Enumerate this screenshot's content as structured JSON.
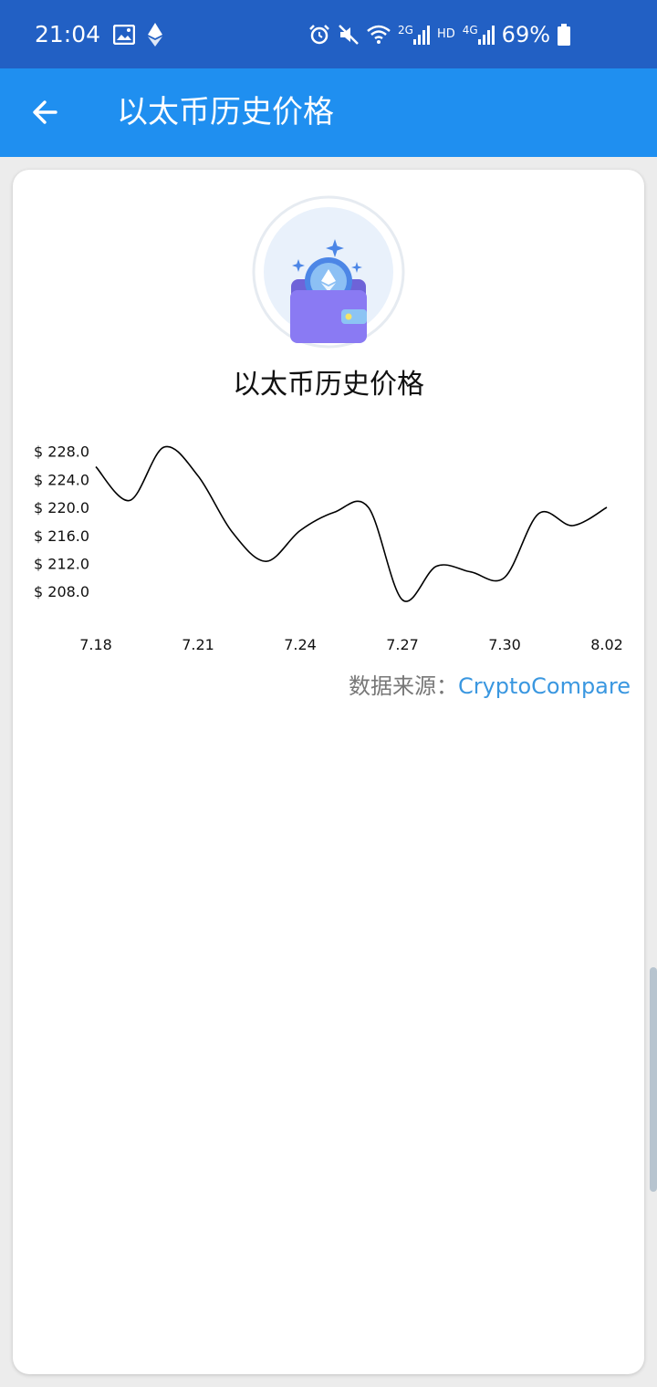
{
  "status_bar": {
    "time": "21:04",
    "battery": "69%",
    "network_2g": "2G",
    "network_hd": "HD",
    "network_4g": "4G",
    "icons": [
      "image-icon",
      "ethereum-icon",
      "alarm-icon",
      "mute-icon",
      "wifi-icon",
      "signal-icon",
      "battery-icon"
    ]
  },
  "app_bar": {
    "title": "以太币历史价格",
    "back_icon": "arrow-left-icon"
  },
  "card": {
    "title": "以太币历史价格",
    "logo_icon": "ethereum-wallet-icon",
    "source_prefix": "数据来源：",
    "source_link": "CryptoCompare"
  },
  "colors": {
    "status_bar": "#2260c4",
    "app_bar": "#1f8ff0",
    "link": "#3a97e0",
    "line": "#000000"
  },
  "chart_data": {
    "type": "line",
    "ylim": [
      206.2,
      228.6
    ],
    "y_ticks": [
      228.0,
      224.0,
      220.0,
      216.0,
      212.0,
      208.0
    ],
    "y_tick_labels": [
      "$ 228.0",
      "$ 224.0",
      "$ 220.0",
      "$ 216.0",
      "$ 212.0",
      "$ 208.0"
    ],
    "x_tick_labels": [
      "7.18",
      "7.21",
      "7.24",
      "7.27",
      "7.30",
      "8.02"
    ],
    "x_tick_days": [
      0,
      3,
      6,
      9,
      12,
      15
    ],
    "grid": false,
    "points": [
      {
        "x": 0,
        "y": 225.8
      },
      {
        "x": 1,
        "y": 221.0
      },
      {
        "x": 2,
        "y": 228.6
      },
      {
        "x": 3,
        "y": 224.5
      },
      {
        "x": 4,
        "y": 216.5
      },
      {
        "x": 5,
        "y": 212.3
      },
      {
        "x": 6,
        "y": 216.7
      },
      {
        "x": 7,
        "y": 219.3
      },
      {
        "x": 8,
        "y": 220.0
      },
      {
        "x": 9,
        "y": 206.8
      },
      {
        "x": 10,
        "y": 211.6
      },
      {
        "x": 11,
        "y": 210.8
      },
      {
        "x": 12,
        "y": 210.0
      },
      {
        "x": 13,
        "y": 219.1
      },
      {
        "x": 14,
        "y": 217.4
      },
      {
        "x": 15,
        "y": 220.0
      }
    ]
  }
}
